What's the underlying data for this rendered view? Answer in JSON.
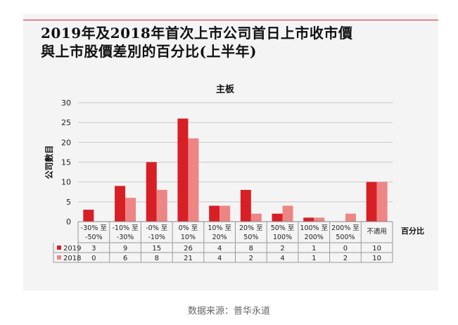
{
  "colors": {
    "series_2019": "#d81f26",
    "series_2018": "#ee8585",
    "accent_line": "#d81f26"
  },
  "header": {
    "title_line1": "2019年及2018年首次上市公司首日上市收市價",
    "title_line2": "與上市股價差別的百分比(上半年)"
  },
  "caption": "数据来源：普华永道",
  "chart_data": {
    "type": "bar",
    "title": "主板",
    "ylabel": "公司數目",
    "xlabel": "百分比",
    "ylim": [
      0,
      30
    ],
    "yticks": [
      0,
      5,
      10,
      15,
      20,
      25,
      30
    ],
    "grid": true,
    "categories": [
      [
        "-30% 至",
        "-50%"
      ],
      [
        "-10% 至",
        "-30%"
      ],
      [
        "-0% 至",
        "-10%"
      ],
      [
        "0% 至",
        "10%"
      ],
      [
        "10% 至",
        "20%"
      ],
      [
        "20% 至",
        "50%"
      ],
      [
        "50% 至",
        "100%"
      ],
      [
        "100% 至",
        "200%"
      ],
      [
        "200% 至",
        "500%"
      ],
      [
        "不適用"
      ]
    ],
    "series": [
      {
        "name": "2019",
        "color": "#d81f26",
        "values": [
          3,
          9,
          15,
          26,
          4,
          8,
          2,
          1,
          0,
          10
        ]
      },
      {
        "name": "2018",
        "color": "#ee8585",
        "values": [
          0,
          6,
          8,
          21,
          4,
          2,
          4,
          1,
          2,
          10
        ]
      }
    ]
  }
}
